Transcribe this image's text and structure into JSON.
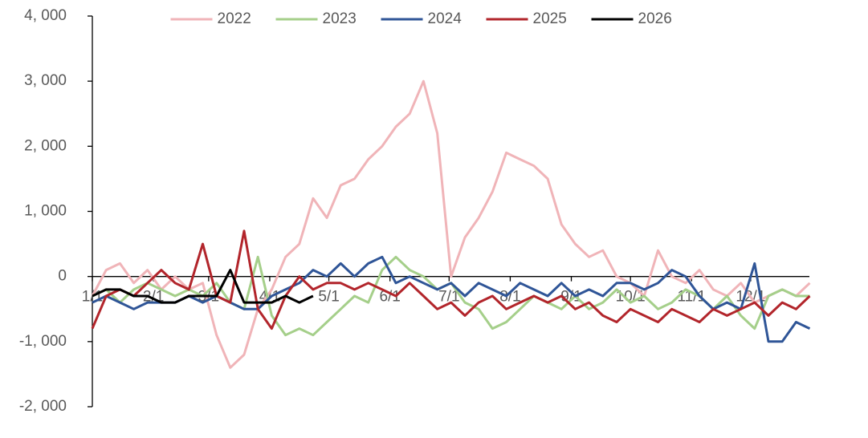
{
  "chart_data": {
    "type": "line",
    "x": [
      0,
      7,
      14,
      21,
      28,
      35,
      42,
      49,
      56,
      63,
      70,
      77,
      84,
      91,
      98,
      105,
      112,
      119,
      126,
      133,
      140,
      147,
      154,
      161,
      168,
      175,
      182,
      189,
      196,
      203,
      210,
      217,
      224,
      231,
      238,
      245,
      252,
      259,
      266,
      273,
      280,
      287,
      294,
      301,
      308,
      315,
      322,
      329,
      336,
      343,
      350,
      357,
      364
    ],
    "xlim": [
      0,
      365
    ],
    "xticks": [
      {
        "value": 0,
        "label": "1/1"
      },
      {
        "value": 31,
        "label": "2/1"
      },
      {
        "value": 59,
        "label": "3/1"
      },
      {
        "value": 90,
        "label": "4/1"
      },
      {
        "value": 120,
        "label": "5/1"
      },
      {
        "value": 151,
        "label": "6/1"
      },
      {
        "value": 181,
        "label": "7/1"
      },
      {
        "value": 212,
        "label": "8/1"
      },
      {
        "value": 243,
        "label": "9/1"
      },
      {
        "value": 273,
        "label": "10/1"
      },
      {
        "value": 304,
        "label": "11/1"
      },
      {
        "value": 334,
        "label": "12/1"
      }
    ],
    "ylim": [
      -2000,
      4000
    ],
    "yticks": [
      {
        "value": -2000,
        "label": "-2, 000"
      },
      {
        "value": -1000,
        "label": "-1, 000"
      },
      0,
      {
        "value": 1000,
        "label": "1, 000"
      },
      {
        "value": 2000,
        "label": "2, 000"
      },
      {
        "value": 3000,
        "label": "3, 000"
      },
      {
        "value": 4000,
        "label": "4, 000"
      }
    ],
    "legend": "top",
    "series": [
      {
        "name": "2022",
        "color": "#f0b4b8",
        "values": [
          -300,
          100,
          200,
          -100,
          100,
          -200,
          0,
          -200,
          -100,
          -900,
          -1400,
          -1200,
          -500,
          -200,
          300,
          500,
          1200,
          900,
          1400,
          1500,
          1800,
          2000,
          2300,
          2500,
          3000,
          2200,
          0,
          600,
          900,
          1300,
          1900,
          1800,
          1700,
          1500,
          800,
          500,
          300,
          400,
          0,
          -100,
          -300,
          400,
          0,
          -100,
          100,
          -200,
          -300,
          -100,
          -400,
          -300,
          -200,
          -300,
          -100
        ]
      },
      {
        "name": "2023",
        "color": "#a5cf8a",
        "values": [
          -300,
          -200,
          -400,
          -200,
          -100,
          -200,
          -300,
          -200,
          -300,
          -100,
          -400,
          -500,
          300,
          -600,
          -900,
          -800,
          -900,
          -700,
          -500,
          -300,
          -400,
          100,
          300,
          100,
          0,
          -200,
          -100,
          -400,
          -500,
          -800,
          -700,
          -500,
          -300,
          -400,
          -500,
          -300,
          -500,
          -400,
          -200,
          -400,
          -300,
          -500,
          -400,
          -200,
          -300,
          -500,
          -300,
          -600,
          -800,
          -300,
          -200,
          -300,
          -300
        ]
      },
      {
        "name": "2024",
        "color": "#2f5597",
        "values": [
          -400,
          -300,
          -400,
          -500,
          -400,
          -400,
          -400,
          -300,
          -400,
          -300,
          -400,
          -500,
          -500,
          -300,
          -200,
          -100,
          100,
          0,
          200,
          0,
          200,
          300,
          -100,
          0,
          -100,
          -200,
          -100,
          -300,
          -100,
          -200,
          -300,
          -100,
          -200,
          -300,
          -100,
          -300,
          -200,
          -300,
          -100,
          -100,
          -200,
          -100,
          100,
          0,
          -300,
          -500,
          -400,
          -500,
          200,
          -1000,
          -1000,
          -700,
          -800
        ]
      },
      {
        "name": "2025",
        "color": "#b2252b",
        "values": [
          -800,
          -300,
          -200,
          -300,
          -100,
          100,
          -100,
          -200,
          500,
          -300,
          -400,
          700,
          -500,
          -800,
          -300,
          0,
          -200,
          -100,
          -100,
          -200,
          -100,
          -200,
          -300,
          -100,
          -300,
          -500,
          -400,
          -600,
          -400,
          -300,
          -500,
          -400,
          -300,
          -400,
          -300,
          -500,
          -400,
          -600,
          -700,
          -500,
          -600,
          -700,
          -500,
          -600,
          -700,
          -500,
          -600,
          -500,
          -400,
          -600,
          -400,
          -500,
          -300
        ]
      },
      {
        "name": "2026",
        "color": "#000000",
        "values": [
          -300,
          -200,
          -200,
          -300,
          -300,
          -400,
          -400,
          -300,
          -300,
          -300,
          100,
          -400,
          -400,
          -400,
          -300,
          -400,
          -300,
          null,
          null,
          null,
          null,
          null,
          null,
          null,
          null,
          null,
          null,
          null,
          null,
          null,
          null,
          null,
          null,
          null,
          null,
          null,
          null,
          null,
          null,
          null,
          null,
          null,
          null,
          null,
          null,
          null,
          null,
          null,
          null,
          null,
          null,
          null,
          null
        ]
      }
    ]
  }
}
